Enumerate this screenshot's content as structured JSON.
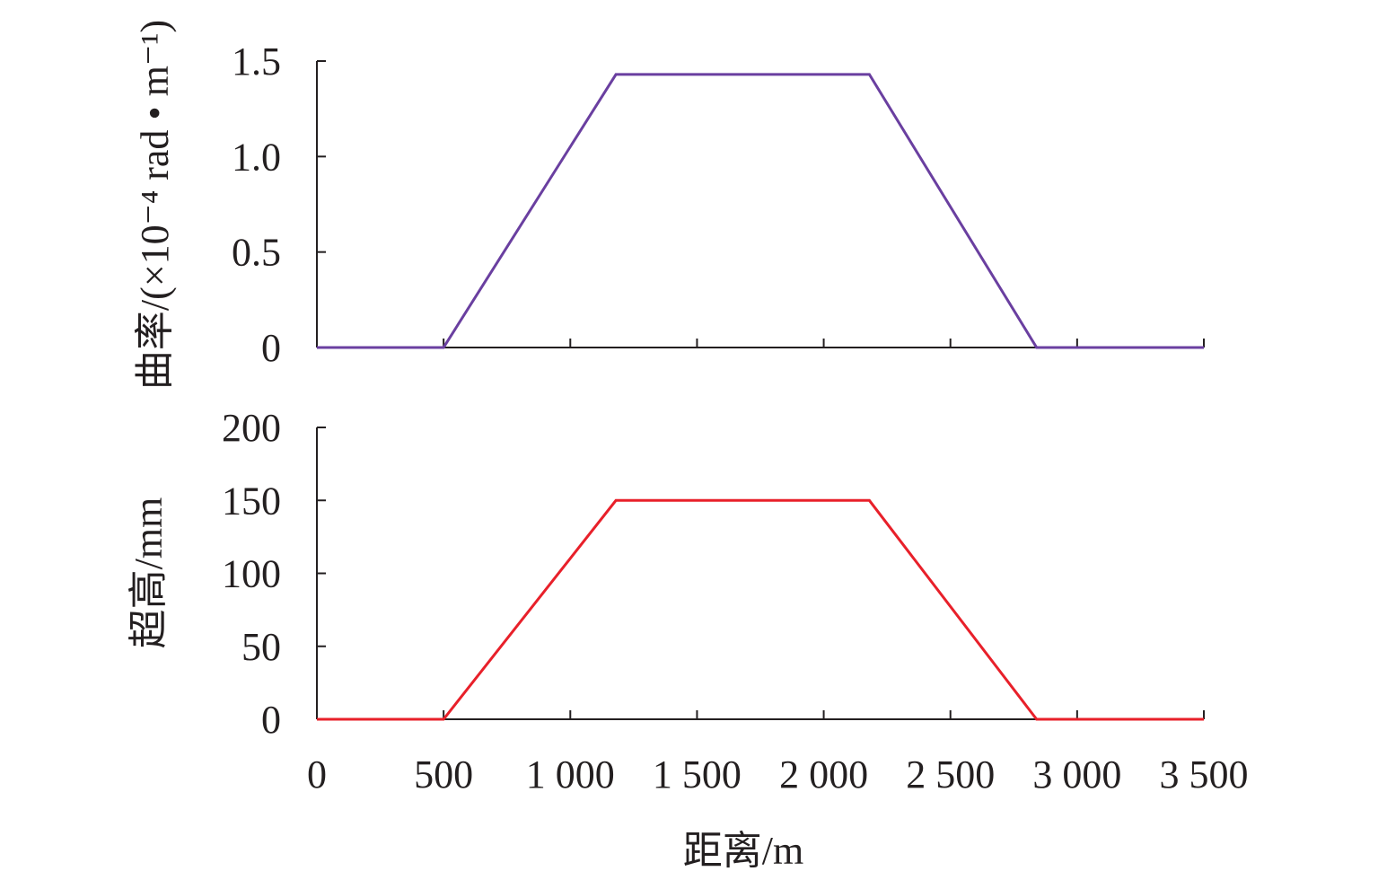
{
  "chart_data": [
    {
      "type": "line",
      "ylabel": "曲率/(×10⁻⁴ rad • m⁻¹)",
      "xlabel": "",
      "xlim": [
        0,
        3500
      ],
      "ylim": [
        0,
        1.5
      ],
      "yticks": [
        0,
        0.5,
        1.0,
        1.5
      ],
      "ytick_labels": [
        "0",
        "0.5",
        "1.0",
        "1.5"
      ],
      "xticks": [
        0,
        500,
        1000,
        1500,
        2000,
        2500,
        3000,
        3500
      ],
      "xtick_labels": [],
      "series": [
        {
          "color": "#6a3fa0",
          "x": [
            0,
            500,
            1180,
            2180,
            2840,
            3500
          ],
          "y": [
            0,
            0,
            1.43,
            1.43,
            0,
            0
          ]
        }
      ]
    },
    {
      "type": "line",
      "ylabel": "超高/mm",
      "xlabel": "距离/m",
      "xlim": [
        0,
        3500
      ],
      "ylim": [
        0,
        200
      ],
      "yticks": [
        0,
        50,
        100,
        150,
        200
      ],
      "ytick_labels": [
        "0",
        "50",
        "100",
        "150",
        "200"
      ],
      "xticks": [
        0,
        500,
        1000,
        1500,
        2000,
        2500,
        3000,
        3500
      ],
      "xtick_labels": [
        "0",
        "500",
        "1 000",
        "1 500",
        "2 000",
        "2 500",
        "3 000",
        "3 500"
      ],
      "series": [
        {
          "color": "#e8202a",
          "x": [
            0,
            500,
            1180,
            2180,
            2840,
            3500
          ],
          "y": [
            0,
            0,
            150,
            150,
            0,
            0
          ]
        }
      ]
    }
  ]
}
